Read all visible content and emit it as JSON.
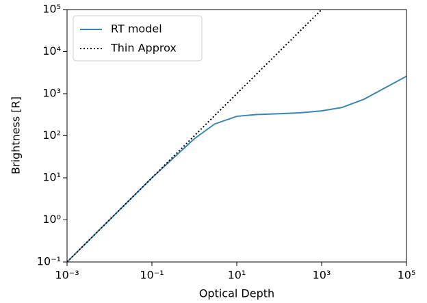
{
  "chart_data": {
    "type": "line",
    "x_label": "Optical Depth",
    "y_label": "Brightness [R]",
    "xscale": "log",
    "yscale": "log",
    "xlim": [
      0.001,
      100000
    ],
    "ylim": [
      0.1,
      100000
    ],
    "xticks": [
      {
        "value": 0.001,
        "label": "10⁻³"
      },
      {
        "value": 0.1,
        "label": "10⁻¹"
      },
      {
        "value": 10,
        "label": "10¹"
      },
      {
        "value": 1000,
        "label": "10³"
      },
      {
        "value": 100000,
        "label": "10⁵"
      }
    ],
    "yticks": [
      {
        "value": 0.1,
        "label": "10⁻¹"
      },
      {
        "value": 1,
        "label": "10⁰"
      },
      {
        "value": 10,
        "label": "10¹"
      },
      {
        "value": 100,
        "label": "10²"
      },
      {
        "value": 1000,
        "label": "10³"
      },
      {
        "value": 10000,
        "label": "10⁴"
      },
      {
        "value": 100000,
        "label": "10⁵"
      }
    ],
    "legend": "upper left",
    "series": [
      {
        "name": "RT model",
        "color": "#3a85b5",
        "dash": "solid",
        "x": [
          0.001,
          0.01,
          0.1,
          1,
          3,
          10,
          30,
          100,
          300,
          1000,
          3000,
          10000,
          100000
        ],
        "values": [
          0.1,
          1,
          10,
          85,
          190,
          290,
          320,
          335,
          350,
          390,
          470,
          740,
          2600
        ]
      },
      {
        "name": "Thin Approx",
        "color": "#000000",
        "dash": "dotted",
        "x": [
          0.001,
          1000
        ],
        "values": [
          0.1,
          100000
        ]
      }
    ]
  }
}
